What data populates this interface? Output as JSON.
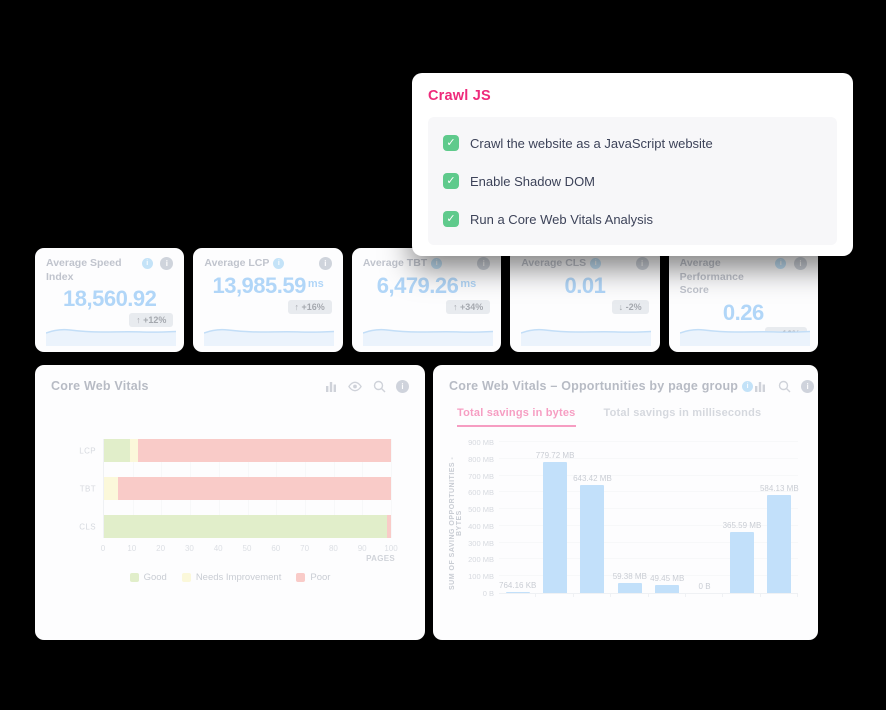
{
  "modal": {
    "title": "Crawl JS",
    "options": [
      {
        "label": "Crawl the website as a JavaScript website",
        "checked": true
      },
      {
        "label": "Enable Shadow DOM",
        "checked": true
      },
      {
        "label": "Run a Core Web Vitals Analysis",
        "checked": true
      }
    ]
  },
  "kpis": [
    {
      "title": "Average Speed Index",
      "value": "18,560.92",
      "unit": "",
      "delta": "+12%",
      "direction": "up"
    },
    {
      "title": "Average LCP",
      "value": "13,985.59",
      "unit": "ms",
      "delta": "+16%",
      "direction": "up"
    },
    {
      "title": "Average TBT",
      "value": "6,479.26",
      "unit": "ms",
      "delta": "+34%",
      "direction": "up"
    },
    {
      "title": "Average CLS",
      "value": "0.01",
      "unit": "",
      "delta": "-2%",
      "direction": "down"
    },
    {
      "title": "Average Performance Score",
      "value": "0.26",
      "unit": "",
      "delta": "-16%",
      "direction": "down"
    }
  ],
  "colors": {
    "accent_pink": "#ee2a7b",
    "checkbox_green": "#5fca8c",
    "kpi_blue": "#55a7f2",
    "bar_blue": "#7cbdf6",
    "good_green": "#c0dd8c",
    "needs_yellow": "#f9f3b0",
    "poor_red": "#f58f88"
  },
  "chart_data": [
    {
      "type": "bar",
      "orientation": "horizontal",
      "stacked": true,
      "title": "Core Web Vitals",
      "categories": [
        "LCP",
        "TBT",
        "CLS"
      ],
      "series": [
        {
          "name": "Good",
          "color": "#c0dd8c",
          "values": [
            9,
            0,
            98.5
          ]
        },
        {
          "name": "Needs Improvement",
          "color": "#f9f3b0",
          "values": [
            3,
            5,
            0
          ]
        },
        {
          "name": "Poor",
          "color": "#f58f88",
          "values": [
            88,
            95,
            1.5
          ]
        }
      ],
      "xlabel": "PAGES",
      "xlim": [
        0,
        100
      ],
      "xticks": [
        0,
        10,
        20,
        30,
        40,
        50,
        60,
        70,
        80,
        90,
        100
      ],
      "legend_position": "bottom",
      "grid": true,
      "header_icons": [
        "bar-chart",
        "eye",
        "zoom",
        "info"
      ]
    },
    {
      "type": "bar",
      "title": "Core Web Vitals – Opportunities by page group",
      "tabs": [
        {
          "label": "Total savings in bytes",
          "active": true
        },
        {
          "label": "Total savings in milliseconds",
          "active": false
        }
      ],
      "ylabel": "SUM OF SAVING OPPORTUNITIES - BYTES",
      "yticks": [
        "0 B",
        "100 MB",
        "200 MB",
        "300 MB",
        "400 MB",
        "500 MB",
        "600 MB",
        "700 MB",
        "800 MB",
        "900 MB"
      ],
      "ylim_mb": [
        0,
        900
      ],
      "grid": true,
      "bars": [
        {
          "label": "764.16 KB",
          "value_mb": 0.75
        },
        {
          "label": "779.72 MB",
          "value_mb": 779.72
        },
        {
          "label": "643.42 MB",
          "value_mb": 643.42
        },
        {
          "label": "59.38 MB",
          "value_mb": 59.38
        },
        {
          "label": "49.45 MB",
          "value_mb": 49.45
        },
        {
          "label": "0 B",
          "value_mb": 0
        },
        {
          "label": "365.59 MB",
          "value_mb": 365.59
        },
        {
          "label": "584.13 MB",
          "value_mb": 584.13
        }
      ],
      "header_icons": [
        "bar-chart",
        "zoom",
        "info"
      ]
    }
  ]
}
